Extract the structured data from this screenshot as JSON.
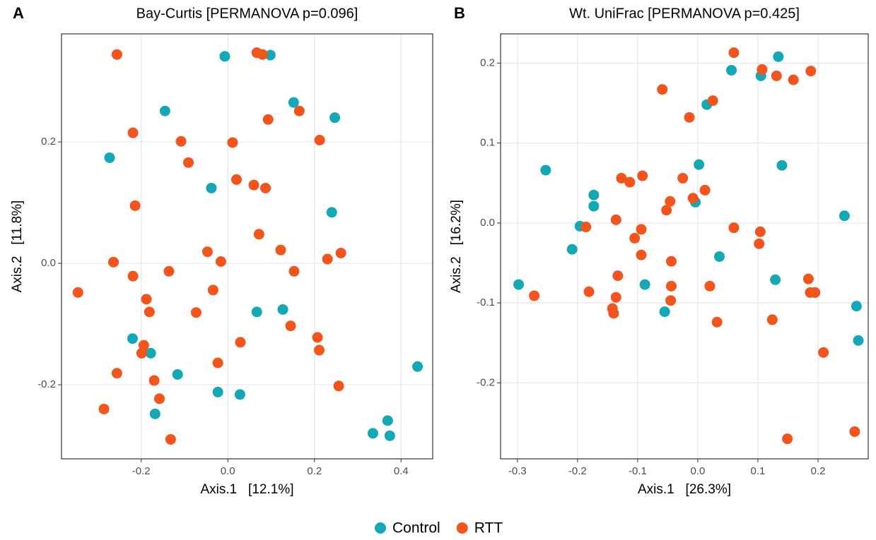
{
  "chart_data": [
    {
      "type": "scatter",
      "panel_label": "A",
      "title": "Bay-Curtis [PERMANOVA p=0.096]",
      "x_label": "Axis.1   [12.1%]",
      "y_label": "Axis.2   [11.8%]",
      "xlim": [
        -0.384,
        0.473
      ],
      "ylim": [
        -0.322,
        0.378
      ],
      "xticks": [
        -0.2,
        {
          "value": 0,
          "label": "0.0"
        },
        0.2,
        0.4
      ],
      "yticks": [
        -0.2,
        {
          "value": 0,
          "label": "0.0"
        },
        0.2
      ],
      "grid": true,
      "series": [
        {
          "name": "Control",
          "color": "#13a8b5",
          "x": [
            -0.007,
            0.098,
            -0.145,
            0.152,
            0.247,
            -0.273,
            -0.038,
            0.24,
            0.067,
            0.127,
            -0.22,
            -0.178,
            -0.116,
            -0.023,
            0.028,
            -0.168,
            0.438,
            0.335,
            0.369,
            0.374
          ],
          "values": [
            0.341,
            0.343,
            0.251,
            0.265,
            0.24,
            0.174,
            0.124,
            0.084,
            -0.08,
            -0.076,
            -0.124,
            -0.148,
            -0.183,
            -0.212,
            -0.216,
            -0.248,
            -0.17,
            -0.28,
            -0.259,
            -0.284
          ]
        },
        {
          "name": "RTT",
          "color": "#f2541b",
          "x": [
            -0.256,
            0.067,
            0.08,
            0.165,
            -0.219,
            -0.108,
            0.011,
            0.093,
            0.212,
            -0.091,
            0.02,
            0.06,
            0.087,
            -0.214,
            0.072,
            0.122,
            -0.047,
            -0.016,
            -0.264,
            0.261,
            0.23,
            0.153,
            -0.136,
            -0.219,
            -0.346,
            -0.034,
            -0.188,
            -0.181,
            -0.073,
            0.145,
            0.207,
            0.029,
            -0.194,
            -0.199,
            0.211,
            -0.023,
            -0.256,
            -0.17,
            0.256,
            -0.158,
            -0.286,
            -0.132
          ],
          "values": [
            0.344,
            0.347,
            0.344,
            0.251,
            0.215,
            0.201,
            0.199,
            0.237,
            0.203,
            0.166,
            0.138,
            0.129,
            0.124,
            0.095,
            0.048,
            0.022,
            0.019,
            0.003,
            0.002,
            0.017,
            0.007,
            -0.013,
            -0.013,
            -0.021,
            -0.048,
            -0.044,
            -0.059,
            -0.08,
            -0.081,
            -0.103,
            -0.122,
            -0.13,
            -0.135,
            -0.148,
            -0.143,
            -0.164,
            -0.181,
            -0.193,
            -0.202,
            -0.223,
            -0.24,
            -0.29
          ]
        }
      ]
    },
    {
      "type": "scatter",
      "panel_label": "B",
      "title": "Wt. UniFrac [PERMANOVA p=0.425]",
      "x_label": "Axis.1   [26.3%]",
      "y_label": "Axis.2   [16.2%]",
      "xlim": [
        -0.328,
        0.2835
      ],
      "ylim": [
        -0.295,
        0.2365
      ],
      "xticks": [
        -0.3,
        -0.2,
        -0.1,
        {
          "value": 0,
          "label": "0.0"
        },
        0.1,
        0.2
      ],
      "yticks": [
        -0.2,
        -0.1,
        {
          "value": 0,
          "label": "0.0"
        },
        0.1,
        0.2
      ],
      "grid": true,
      "series": [
        {
          "name": "Control",
          "color": "#13a8b5",
          "x": [
            0.134,
            0.056,
            0.105,
            0.015,
            -0.253,
            0.14,
            0.002,
            -0.173,
            -0.173,
            -0.004,
            -0.196,
            -0.209,
            0.244,
            0.036,
            -0.298,
            -0.088,
            0.129,
            -0.055,
            0.264,
            0.267
          ],
          "values": [
            0.208,
            0.191,
            0.184,
            0.148,
            0.066,
            0.072,
            0.073,
            0.035,
            0.021,
            0.026,
            -0.004,
            -0.033,
            0.009,
            -0.042,
            -0.077,
            -0.077,
            -0.071,
            -0.111,
            -0.104,
            -0.147
          ]
        },
        {
          "name": "RTT",
          "color": "#f2541b",
          "x": [
            0.06,
            0.107,
            0.131,
            0.159,
            0.188,
            -0.059,
            0.025,
            -0.014,
            -0.127,
            -0.113,
            -0.092,
            -0.025,
            -0.046,
            -0.008,
            0.012,
            -0.052,
            -0.186,
            -0.136,
            0.06,
            -0.094,
            -0.105,
            0.104,
            0.102,
            -0.094,
            -0.044,
            -0.133,
            -0.044,
            0.02,
            -0.181,
            -0.272,
            -0.136,
            0.184,
            0.187,
            0.195,
            -0.045,
            -0.142,
            -0.14,
            0.124,
            0.032,
            0.209,
            0.149,
            0.261
          ],
          "values": [
            0.213,
            0.192,
            0.184,
            0.179,
            0.19,
            0.167,
            0.153,
            0.132,
            0.056,
            0.051,
            0.059,
            0.056,
            0.027,
            0.031,
            0.041,
            0.016,
            -0.005,
            0.004,
            -0.006,
            -0.008,
            -0.019,
            -0.011,
            -0.026,
            -0.04,
            -0.048,
            -0.066,
            -0.079,
            -0.079,
            -0.086,
            -0.091,
            -0.093,
            -0.07,
            -0.087,
            -0.087,
            -0.097,
            -0.107,
            -0.113,
            -0.121,
            -0.124,
            -0.162,
            -0.27,
            -0.261
          ]
        }
      ]
    }
  ]
}
